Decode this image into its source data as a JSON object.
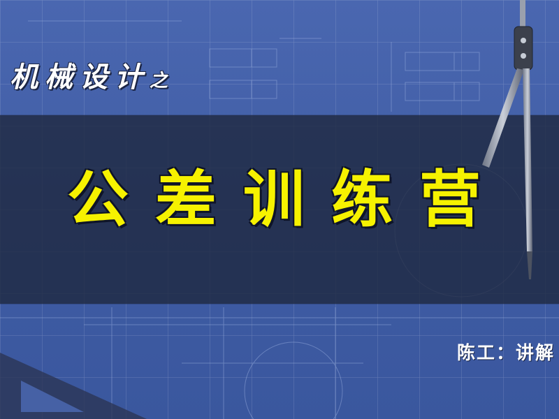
{
  "slide": {
    "series_title_main": "机械设计",
    "series_title_suffix": "之",
    "main_title": "公差训练营",
    "presenter": "陈工：讲解"
  },
  "colors": {
    "background": "#4a67b0",
    "band": "#1e263c",
    "title_yellow": "#f6f200",
    "text_white": "#ffffff"
  },
  "decor": {
    "compass": "drafting-compass-icon",
    "set_square": "set-square-icon"
  }
}
